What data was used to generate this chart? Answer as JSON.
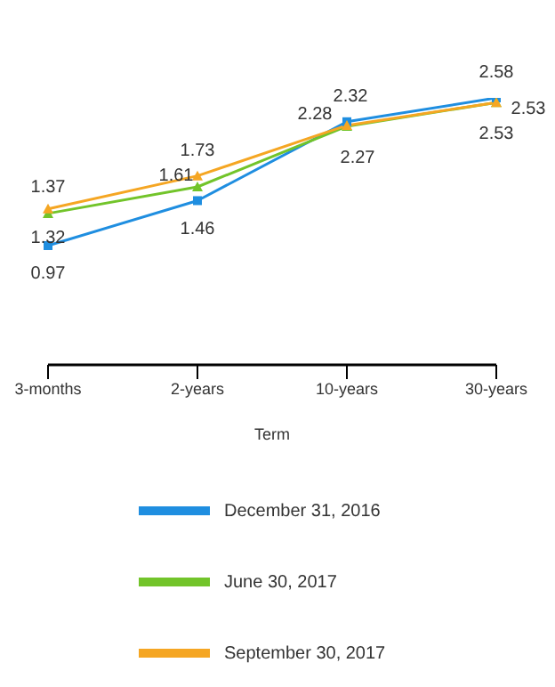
{
  "chart_data": {
    "type": "line",
    "xlabel": "Term",
    "categories": [
      "3-months",
      "2-years",
      "10-years",
      "30-years"
    ],
    "series": [
      {
        "name": "December 31, 2016",
        "color": "#1f8ee0",
        "marker": "square",
        "values": [
          0.97,
          1.46,
          2.32,
          2.58
        ]
      },
      {
        "name": "June 30, 2017",
        "color": "#72c42a",
        "marker": "triangle",
        "values": [
          1.32,
          1.61,
          2.27,
          2.53
        ]
      },
      {
        "name": "September 30, 2017",
        "color": "#f5a623",
        "marker": "triangle",
        "values": [
          1.37,
          1.73,
          2.28,
          2.53
        ]
      }
    ],
    "data_labels": true,
    "grid": false,
    "legend": "bottom"
  }
}
